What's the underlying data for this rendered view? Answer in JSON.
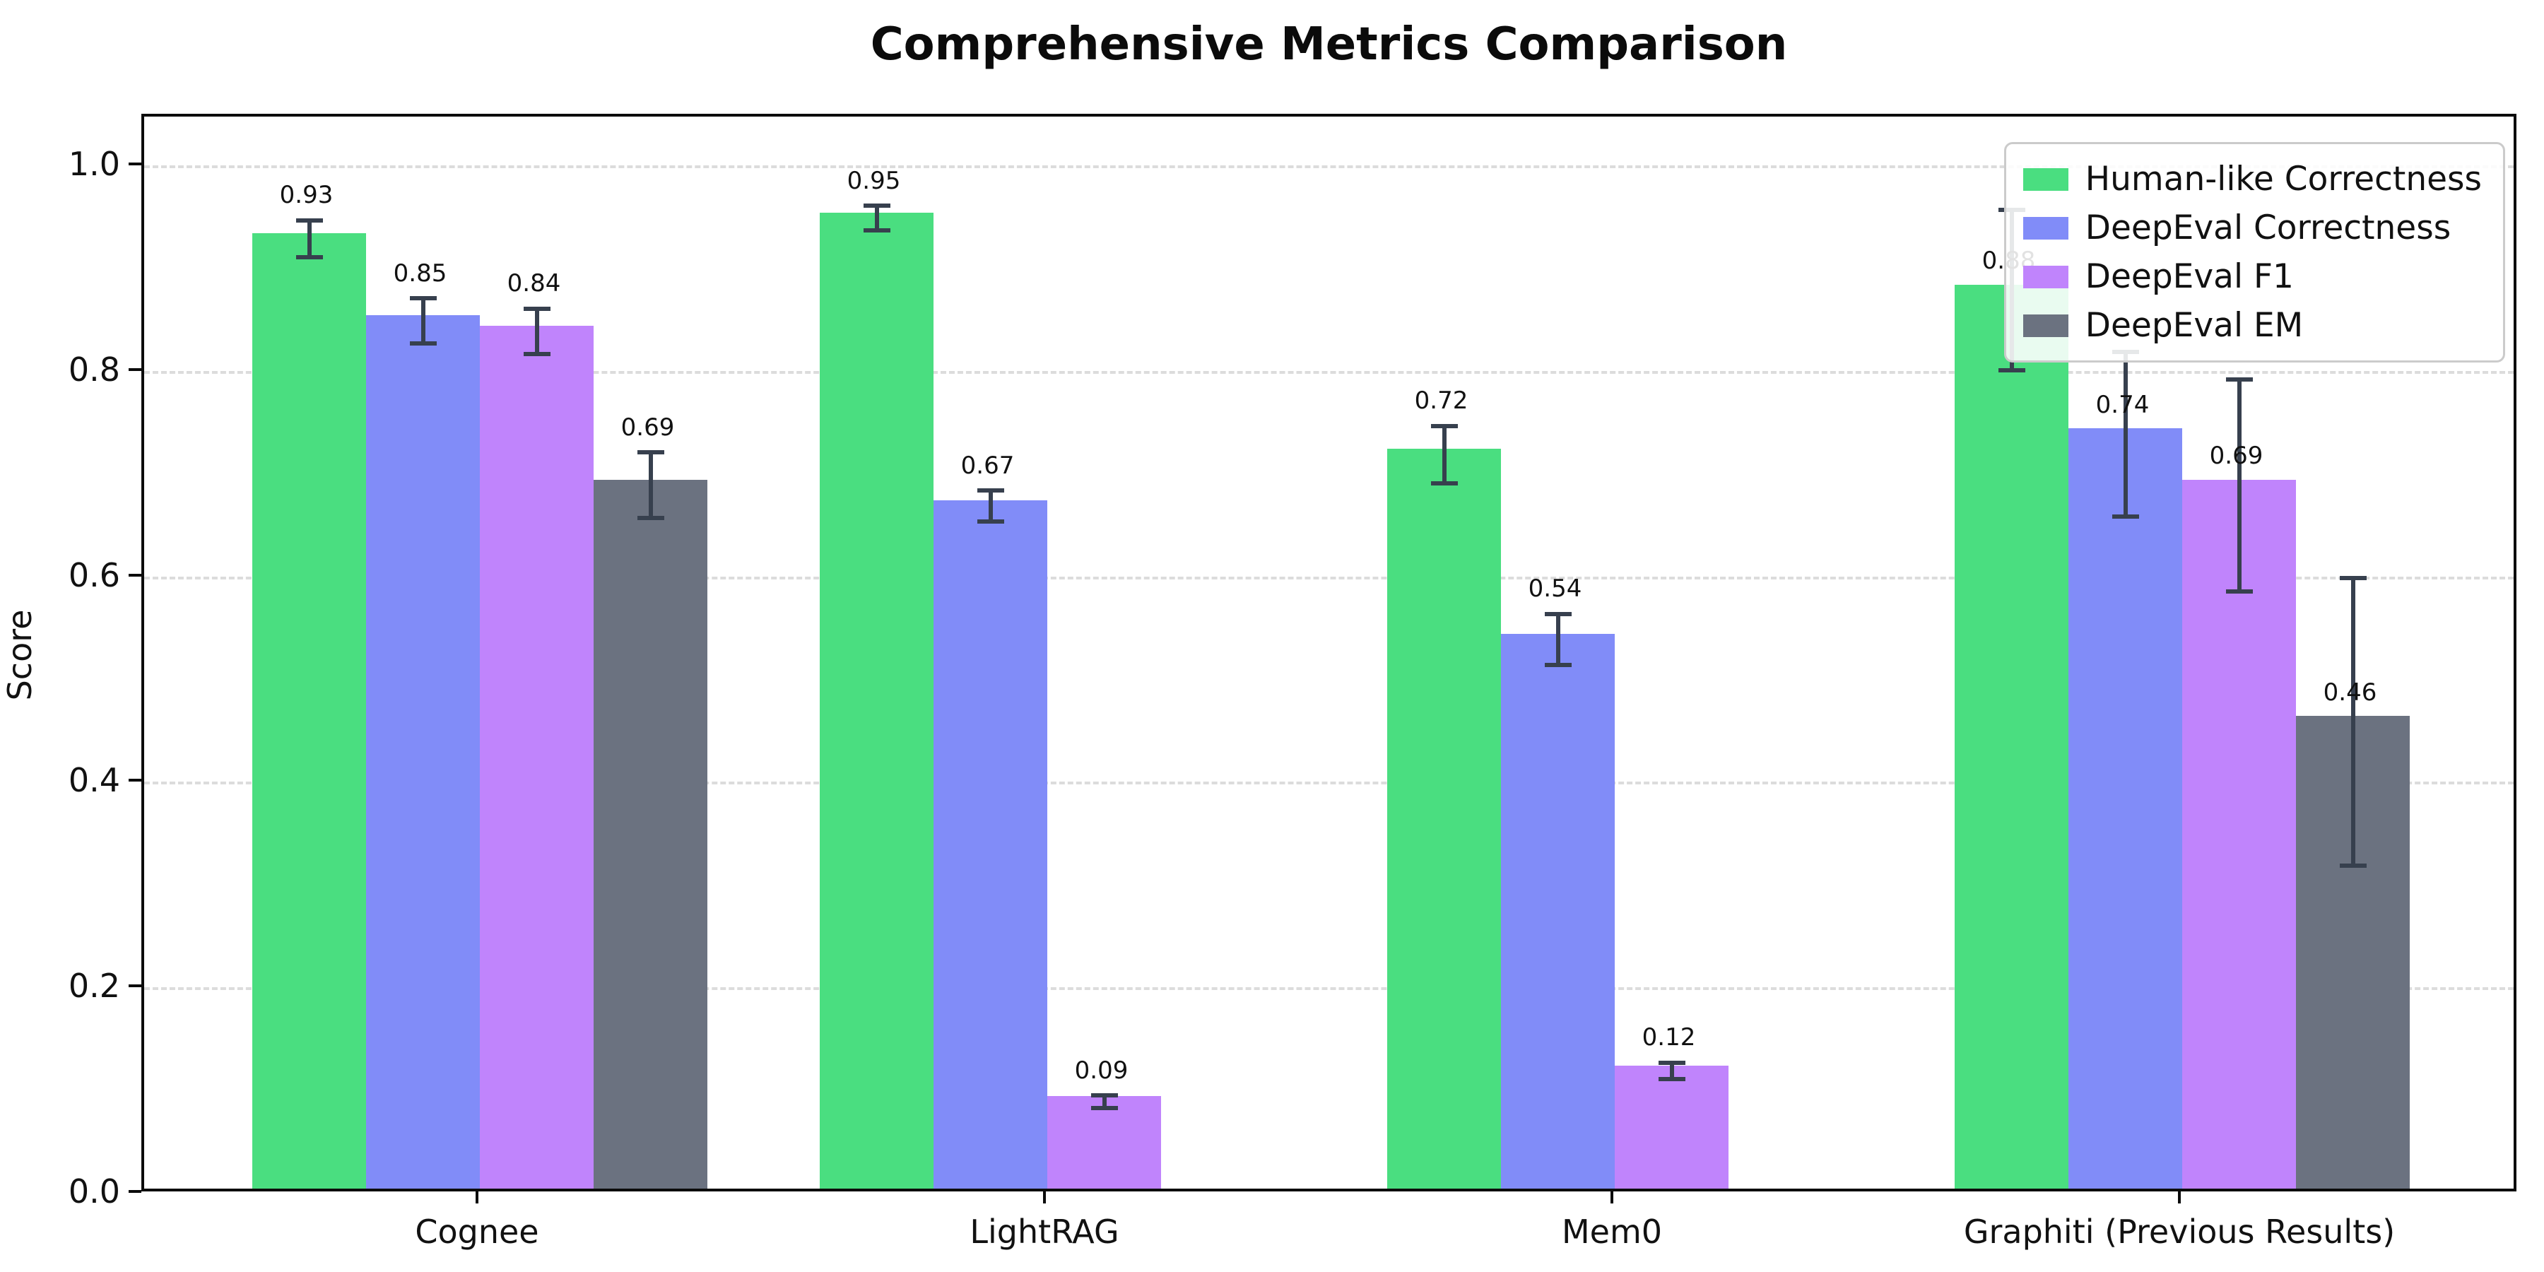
{
  "title": "Comprehensive Metrics Comparison",
  "chart_data": {
    "type": "bar",
    "title": "Comprehensive Metrics Comparison",
    "ylabel": "Score",
    "xlabel": "",
    "categories": [
      "Cognee",
      "LightRAG",
      "Mem0",
      "Graphiti (Previous Results)"
    ],
    "series": [
      {
        "name": "Human-like Correctness",
        "color": "#4ade80",
        "values": [
          0.93,
          0.95,
          0.72,
          0.88
        ],
        "errors": [
          0.018,
          0.012,
          0.028,
          0.078
        ],
        "labels": [
          "0.93",
          "0.95",
          "0.72",
          "0.88"
        ]
      },
      {
        "name": "DeepEval Correctness",
        "color": "#818cf8",
        "values": [
          0.85,
          0.67,
          0.54,
          0.74
        ],
        "errors": [
          0.022,
          0.015,
          0.025,
          0.08
        ],
        "labels": [
          "0.85",
          "0.67",
          "0.54",
          "0.74"
        ]
      },
      {
        "name": "DeepEval F1",
        "color": "#c084fc",
        "values": [
          0.84,
          0.09,
          0.12,
          0.69
        ],
        "errors": [
          0.022,
          0.006,
          0.008,
          0.103
        ],
        "labels": [
          "0.84",
          "0.09",
          "0.12",
          "0.69"
        ]
      },
      {
        "name": "DeepEval EM",
        "color": "#6b7280",
        "values": [
          0.69,
          0.0,
          0.0,
          0.46
        ],
        "errors": [
          0.032,
          0.003,
          0.003,
          0.14
        ],
        "labels": [
          "0.69",
          "",
          "",
          "0.46"
        ]
      }
    ],
    "yticks": [
      {
        "value": 0.0,
        "label": "0.0"
      },
      {
        "value": 0.2,
        "label": "0.2"
      },
      {
        "value": 0.4,
        "label": "0.4"
      },
      {
        "value": 0.6,
        "label": "0.6"
      },
      {
        "value": 0.8,
        "label": "0.8"
      },
      {
        "value": 1.0,
        "label": "1.0"
      }
    ],
    "ylim": [
      0,
      1.049
    ],
    "grid": "horizontal-dashed",
    "legend_position": "top-right",
    "error_bar_color": "#37404e"
  }
}
